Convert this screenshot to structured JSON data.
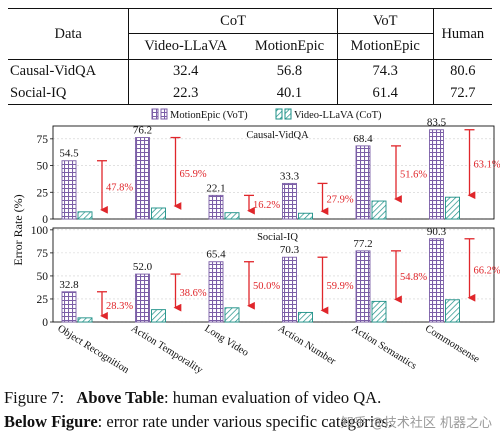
{
  "table": {
    "header_data": "Data",
    "header_cot": "CoT",
    "header_vot": "VoT",
    "header_human": "Human",
    "sub_cot_1": "Video-LLaVA",
    "sub_cot_2": "MotionEpic",
    "sub_vot_1": "MotionEpic",
    "rows": [
      {
        "name": "Causal-VidQA",
        "v1": "32.4",
        "v2": "56.8",
        "v3": "74.3",
        "v4": "80.6"
      },
      {
        "name": "Social-IQ",
        "v1": "22.3",
        "v2": "40.1",
        "v3": "61.4",
        "v4": "72.7"
      }
    ]
  },
  "chart_data": {
    "type": "bar",
    "ylabel": "Error Rate (%)",
    "legend": [
      "MotionEpic (VoT)",
      "Video-LLaVA (CoT)"
    ],
    "legend_position": "top-center",
    "categories": [
      "Object Recognition",
      "Action Temporality",
      "Long Video",
      "Action Number",
      "Action Semantics",
      "Commonsense"
    ],
    "panels": [
      {
        "title": "Causal-VidQA",
        "ylim": [
          0,
          87
        ],
        "yticks": [
          "0",
          "25",
          "50",
          "75"
        ],
        "series": [
          {
            "name": "MotionEpic (VoT)",
            "values": [
              54.5,
              76.2,
              22.1,
              33.3,
              68.4,
              83.5
            ]
          },
          {
            "name": "Video-LLaVA (CoT)",
            "values": [
              6.7,
              10.3,
              5.9,
              5.4,
              16.8,
              20.4
            ]
          }
        ],
        "value_labels": [
          "54.5",
          "76.2",
          "22.1",
          "33.3",
          "68.4",
          "83.5"
        ],
        "pct_labels": [
          "47.8%",
          "65.9%",
          "16.2%",
          "27.9%",
          "51.6%",
          "63.1%"
        ]
      },
      {
        "title": "Social-IQ",
        "ylim": [
          0,
          102
        ],
        "yticks": [
          "0",
          "25",
          "50",
          "75",
          "100"
        ],
        "series": [
          {
            "name": "MotionEpic (VoT)",
            "values": [
              32.8,
              52.0,
              65.4,
              70.3,
              77.2,
              90.3
            ]
          },
          {
            "name": "Video-LLaVA (CoT)",
            "values": [
              4.5,
              13.4,
              15.4,
              10.4,
              22.4,
              24.1
            ]
          }
        ],
        "value_labels": [
          "32.8",
          "52.0",
          "65.4",
          "70.3",
          "77.2",
          "90.3"
        ],
        "pct_labels": [
          "28.3%",
          "38.6%",
          "50.0%",
          "59.9%",
          "54.8%",
          "66.2%"
        ]
      }
    ],
    "colors": {
      "vot": "#7b5ea7",
      "cot": "#1a8f86",
      "arrow": "#e0262b",
      "pct": "#e0262b"
    }
  },
  "caption": {
    "fig_label": "Figure 7:",
    "bold1": "Above Table",
    "text1": ": human evaluation of video QA.",
    "bold2": "Below Figure",
    "text2": ": error rate under various specific categories."
  },
  "watermark": "知乎 @技术社区 机器之心"
}
